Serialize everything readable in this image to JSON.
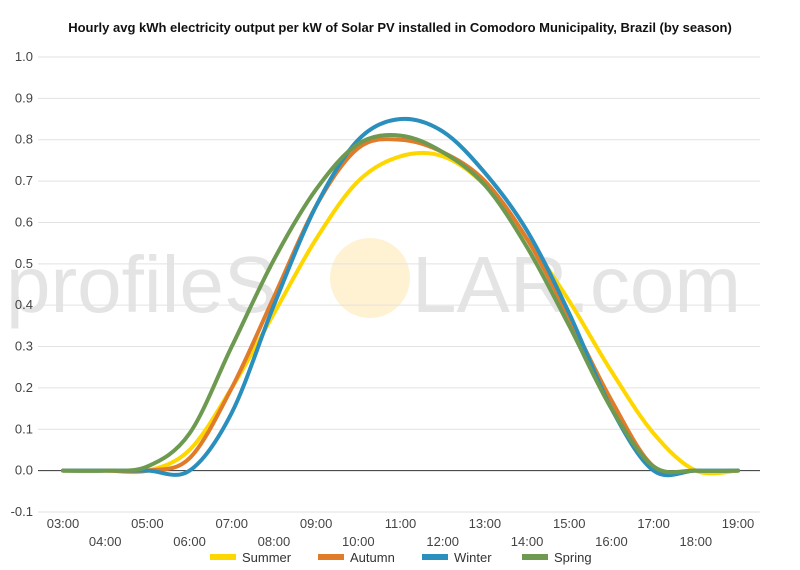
{
  "chart_data": {
    "type": "line",
    "title": "Hourly avg kWh electricity output per kW of Solar PV installed in Comodoro Municipality, Brazil (by season)",
    "xlabel": "",
    "ylabel": "",
    "ylim": [
      -0.1,
      1.0
    ],
    "yticks": [
      "-0.1",
      "0.0",
      "0.1",
      "0.2",
      "0.3",
      "0.4",
      "0.5",
      "0.6",
      "0.7",
      "0.8",
      "0.9",
      "1.0"
    ],
    "x": [
      "03:00",
      "04:00",
      "05:00",
      "06:00",
      "07:00",
      "08:00",
      "09:00",
      "10:00",
      "11:00",
      "12:00",
      "13:00",
      "14:00",
      "15:00",
      "16:00",
      "17:00",
      "18:00",
      "19:00"
    ],
    "grid": true,
    "legend": "bottom",
    "series": [
      {
        "name": "Summer",
        "color": "#ffd700",
        "values": [
          0.0,
          0.0,
          0.0,
          0.05,
          0.2,
          0.38,
          0.56,
          0.7,
          0.76,
          0.76,
          0.69,
          0.56,
          0.41,
          0.24,
          0.09,
          0.0,
          0.0
        ]
      },
      {
        "name": "Autumn",
        "color": "#e07b2a",
        "values": [
          0.0,
          0.0,
          0.0,
          0.03,
          0.2,
          0.42,
          0.64,
          0.78,
          0.8,
          0.77,
          0.7,
          0.56,
          0.37,
          0.17,
          0.01,
          0.0,
          0.0
        ]
      },
      {
        "name": "Winter",
        "color": "#2a8fbd",
        "values": [
          0.0,
          0.0,
          0.0,
          0.0,
          0.14,
          0.4,
          0.64,
          0.8,
          0.85,
          0.82,
          0.72,
          0.58,
          0.38,
          0.15,
          0.0,
          0.0,
          0.0
        ]
      },
      {
        "name": "Spring",
        "color": "#6d9a50",
        "values": [
          0.0,
          0.0,
          0.01,
          0.09,
          0.3,
          0.51,
          0.68,
          0.79,
          0.81,
          0.77,
          0.69,
          0.54,
          0.35,
          0.15,
          0.01,
          0.0,
          0.0
        ]
      }
    ]
  },
  "watermark": {
    "text_left": "profileS",
    "text_right": "LAR.com",
    "sun_color": "#fde9b4"
  }
}
